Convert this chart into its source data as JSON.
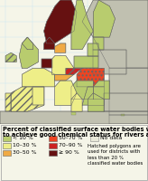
{
  "title_line1": "Percent of classified surface water bodies with failure",
  "title_line2": "to achieve good chemical status for rivers and lakes",
  "map_bg": "#b8dde8",
  "land_default": "#c8c8b0",
  "ocean_color": "#b8dde8",
  "grid_color": "#d0eef8",
  "legend_bg": "#f5f5e8",
  "border_color": "#777777",
  "colors": {
    "lt10": "#b8cc6e",
    "10_30": "#eeee88",
    "30_50": "#f0aa44",
    "50_70": "#ee4422",
    "70_90": "#cc2222",
    "ge90": "#661111",
    "nodat": "#e8e8d8",
    "land": "#c0c0b0",
    "water": "#b8dde8"
  },
  "title_fontsize": 4.8,
  "legend_fontsize": 4.4,
  "note_fontsize": 3.9
}
